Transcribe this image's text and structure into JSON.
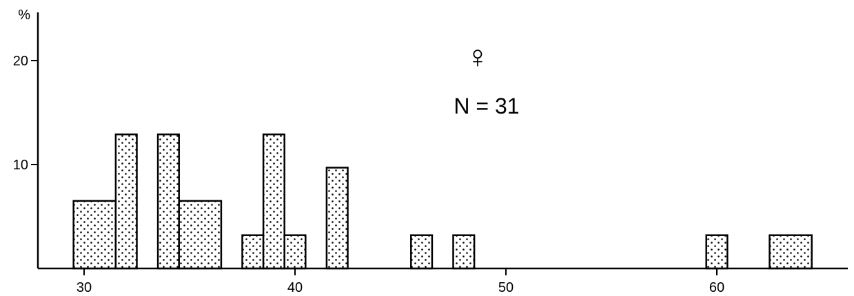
{
  "chart_data": {
    "type": "bar",
    "title": "",
    "xlabel": "",
    "ylabel": "%",
    "annotations": [
      "♀",
      "N = 31"
    ],
    "n": 31,
    "xlim": [
      28,
      66
    ],
    "ylim": [
      0,
      25
    ],
    "x_ticks": [
      30,
      40,
      50,
      60
    ],
    "y_ticks": [
      10,
      20
    ],
    "bin_width": 1,
    "bins": [
      {
        "start": 29.5,
        "end": 31.5,
        "value": 6.5
      },
      {
        "start": 31.5,
        "end": 32.5,
        "value": 12.9
      },
      {
        "start": 33.5,
        "end": 34.5,
        "value": 12.9
      },
      {
        "start": 34.5,
        "end": 36.5,
        "value": 6.5
      },
      {
        "start": 37.5,
        "end": 38.5,
        "value": 3.2
      },
      {
        "start": 38.5,
        "end": 39.5,
        "value": 12.9
      },
      {
        "start": 39.5,
        "end": 40.5,
        "value": 3.2
      },
      {
        "start": 41.5,
        "end": 42.5,
        "value": 9.7
      },
      {
        "start": 45.5,
        "end": 46.5,
        "value": 3.2
      },
      {
        "start": 47.5,
        "end": 48.5,
        "value": 3.2
      },
      {
        "start": 59.5,
        "end": 60.5,
        "value": 3.2
      },
      {
        "start": 62.5,
        "end": 64.5,
        "value": 3.2
      }
    ],
    "grid": false,
    "legend": "none",
    "colors": {
      "bar_fill": "#ffffff",
      "bar_stroke": "#000000",
      "dot": "#000000"
    }
  }
}
